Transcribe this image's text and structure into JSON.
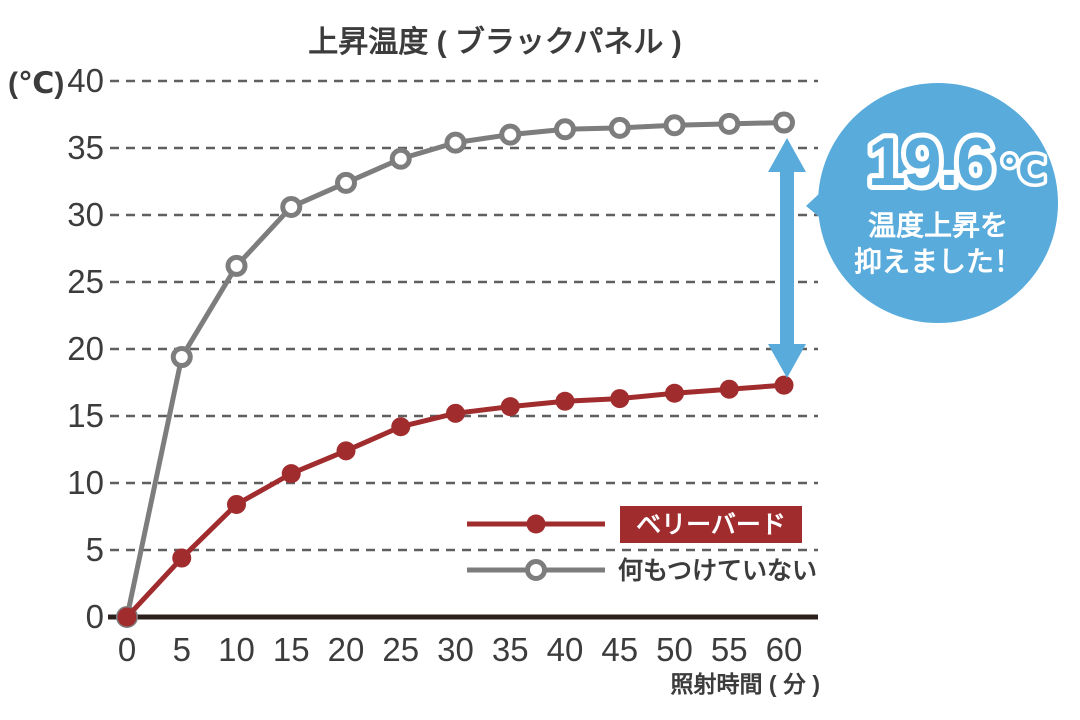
{
  "title": "上昇温度 ( ブラックパネル )",
  "y_axis_unit": "(℃)",
  "x_axis_label": "照射時間 ( 分 )",
  "chart_data": {
    "type": "line",
    "x": [
      0,
      5,
      10,
      15,
      20,
      25,
      30,
      35,
      40,
      45,
      50,
      55,
      60
    ],
    "xlabel": "照射時間 ( 分 )",
    "ylabel": "(℃)",
    "ylim": [
      0,
      40
    ],
    "yticks": [
      0,
      5,
      10,
      15,
      20,
      25,
      30,
      35,
      40
    ],
    "grid": "dashed-horizontal",
    "legend_position": "inside-bottom-right",
    "series": [
      {
        "name": "ベリーバード",
        "color": "#a12c2e",
        "marker": "filled-circle",
        "values": [
          0,
          4.4,
          8.4,
          10.7,
          12.4,
          14.2,
          15.2,
          15.7,
          16.1,
          16.3,
          16.7,
          17.0,
          17.3
        ]
      },
      {
        "name": "何もつけていない",
        "color": "#7d7d7d",
        "marker": "open-circle",
        "values": [
          0,
          19.4,
          26.2,
          30.6,
          32.4,
          34.2,
          35.4,
          36.0,
          36.4,
          36.5,
          36.7,
          36.8,
          36.9
        ]
      }
    ]
  },
  "annotation": {
    "value": "19.6",
    "unit": "℃",
    "line1": "温度上昇を",
    "line2": "抑えました！",
    "meaning": "difference between the two curves at 60 min"
  },
  "colors": {
    "red": "#a12c2e",
    "gray": "#7d7d7d",
    "blue": "#58abdb",
    "grid": "#5f5f5f",
    "text": "#3c3c3c",
    "axis_line": "#2b201d",
    "white": "#ffffff"
  }
}
